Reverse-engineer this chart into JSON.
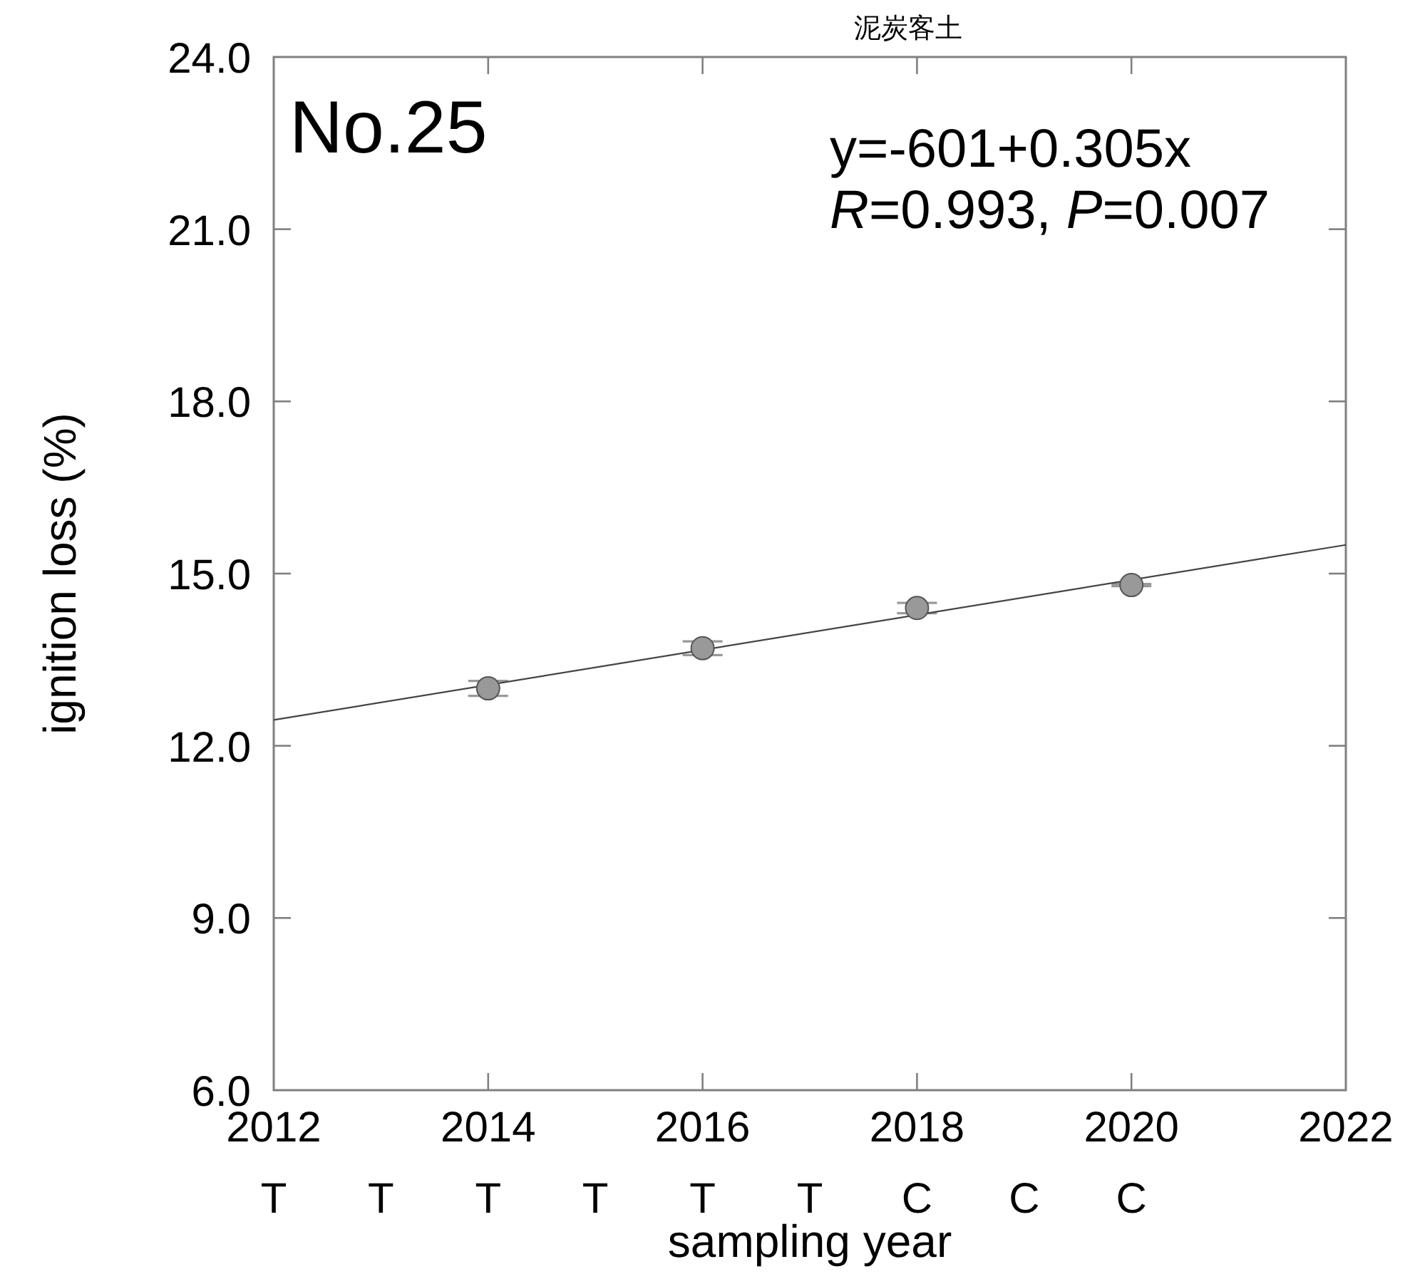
{
  "chart_data": {
    "type": "scatter",
    "title": "泥炭客土",
    "xlabel": "sampling year",
    "ylabel": "ignition loss (%)",
    "xlim": [
      2012,
      2022
    ],
    "xticks": [
      2012,
      2014,
      2016,
      2018,
      2020,
      2022
    ],
    "ylim": [
      6,
      24
    ],
    "yticks": [
      {
        "value": 6,
        "label": "6.0"
      },
      {
        "value": 9,
        "label": "9.0"
      },
      {
        "value": 12,
        "label": "12.0"
      },
      {
        "value": 15,
        "label": "15.0"
      },
      {
        "value": 18,
        "label": "18.0"
      },
      {
        "value": 21,
        "label": "21.0"
      },
      {
        "value": 24,
        "label": "24.0"
      }
    ],
    "series": [
      {
        "x": [
          2014,
          2016,
          2018,
          2020
        ],
        "values": [
          13.0,
          13.7,
          14.4,
          14.8
        ],
        "errors": [
          0.13,
          0.12,
          0.09,
          0.02
        ],
        "color": "#999999",
        "marker": "circle"
      },
      {
        "type": "line",
        "x": [
          2012,
          2022
        ],
        "values": [
          12.45,
          15.5
        ],
        "color": "#444444"
      }
    ],
    "annotations": [
      "No.25",
      "y=-601+0.305x",
      "R=0.993, P=0.007",
      "T",
      "T",
      "T",
      "T",
      "T",
      "T",
      "C",
      "C",
      "C"
    ]
  }
}
